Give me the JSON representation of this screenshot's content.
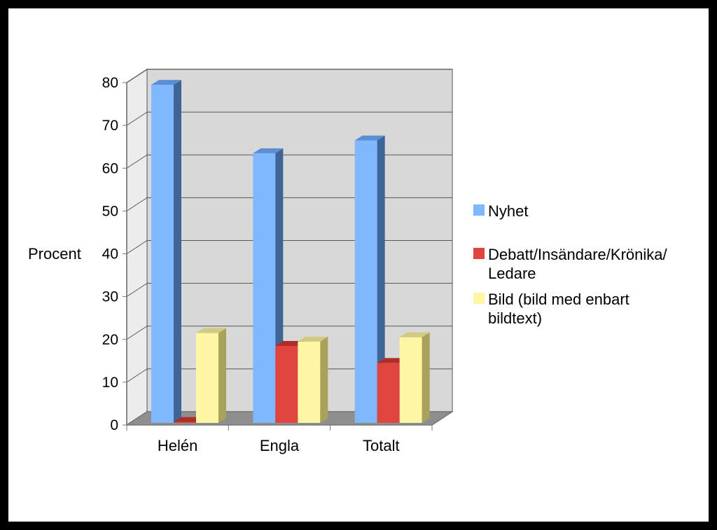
{
  "chart_data": {
    "type": "bar",
    "title": "",
    "xlabel": "",
    "ylabel": "Procent",
    "ylim": [
      0,
      80
    ],
    "yticks": [
      0,
      10,
      20,
      30,
      40,
      50,
      60,
      70,
      80
    ],
    "categories": [
      "Helén",
      "Engla",
      "Totalt"
    ],
    "series": [
      {
        "name": "Nyhet",
        "values": [
          79,
          63,
          66
        ],
        "color": "#7fb8ff",
        "side_color": "#3f6596",
        "top_color": "#5a8fd1"
      },
      {
        "name": "Debatt/Insändare/Krönika/ Ledare",
        "values": [
          0.2,
          18,
          14
        ],
        "color": "#e0443f",
        "side_color": "#8a1f1c",
        "top_color": "#b02c28"
      },
      {
        "name": "Bild (bild med enbart bildtext)",
        "values": [
          21,
          19,
          20
        ],
        "color": "#fff6a3",
        "side_color": "#a9a25a",
        "top_color": "#d2ca80"
      }
    ],
    "legend_position": "right",
    "grid": true,
    "style": "3d",
    "wall_color": "#d8d8d8",
    "floor_color": "#8e8e8e"
  }
}
